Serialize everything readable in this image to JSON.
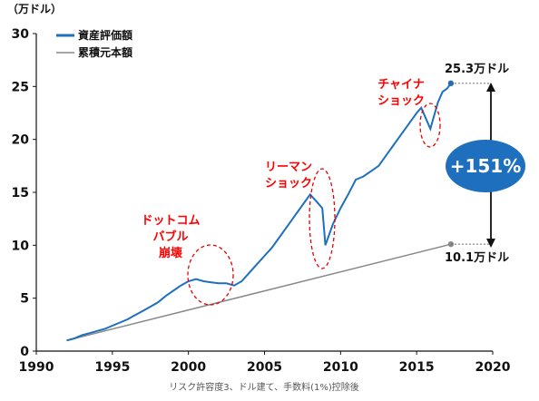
{
  "chart_data": {
    "type": "line",
    "y_unit": "（万ドル）",
    "ylim": [
      0,
      30
    ],
    "yticks": [
      0,
      5,
      10,
      15,
      20,
      25,
      30
    ],
    "xlim": [
      1990,
      2020
    ],
    "xticks": [
      1990,
      1995,
      2000,
      2005,
      2010,
      2015,
      2020
    ],
    "grid": false,
    "legend_position": "top-left",
    "note": "リスク許容度3、ドル建て、手数料(1%)控除後",
    "series": [
      {
        "name": "資産評価額",
        "color": "#1f6fbf",
        "x": [
          1992.0,
          1992.5,
          1993.0,
          1993.5,
          1994.0,
          1994.5,
          1995.0,
          1995.5,
          1996.0,
          1996.5,
          1997.0,
          1997.5,
          1998.0,
          1998.5,
          1999.0,
          1999.5,
          2000.0,
          2000.5,
          2001.0,
          2001.5,
          2002.0,
          2002.5,
          2003.0,
          2003.5,
          2004.0,
          2004.5,
          2005.0,
          2005.5,
          2006.0,
          2006.5,
          2007.0,
          2007.5,
          2008.0,
          2008.5,
          2008.8,
          2009.0,
          2009.2,
          2009.5,
          2010.0,
          2010.5,
          2011.0,
          2011.5,
          2012.0,
          2012.5,
          2013.0,
          2013.5,
          2014.0,
          2014.5,
          2015.0,
          2015.3,
          2015.6,
          2015.9,
          2016.1,
          2016.4,
          2016.7,
          2017.0,
          2017.25
        ],
        "y": [
          1.0,
          1.2,
          1.5,
          1.7,
          1.9,
          2.1,
          2.4,
          2.7,
          3.0,
          3.4,
          3.8,
          4.2,
          4.6,
          5.2,
          5.7,
          6.2,
          6.6,
          6.8,
          6.6,
          6.5,
          6.4,
          6.4,
          6.2,
          6.6,
          7.4,
          8.2,
          9.0,
          9.8,
          10.8,
          11.8,
          12.8,
          13.8,
          14.8,
          14.0,
          13.5,
          10.0,
          10.8,
          12.0,
          13.5,
          14.8,
          16.2,
          16.5,
          17.0,
          17.5,
          18.5,
          19.5,
          20.5,
          21.5,
          22.5,
          23.0,
          22.0,
          21.0,
          22.0,
          23.5,
          24.5,
          24.8,
          25.3
        ]
      },
      {
        "name": "累積元本額",
        "color": "#888888",
        "x": [
          1992.0,
          2017.25
        ],
        "y": [
          1.0,
          10.1
        ]
      }
    ],
    "annotations": [
      {
        "lines": [
          "ドットコム",
          "バブル",
          "崩壊"
        ]
      },
      {
        "lines": [
          "リーマン",
          "ショック"
        ]
      },
      {
        "lines": [
          "チャイナ",
          "ショック"
        ]
      }
    ],
    "end_labels": {
      "asset": "25.3万ドル",
      "principal": "10.1万ドル"
    },
    "callout": "+151%"
  }
}
